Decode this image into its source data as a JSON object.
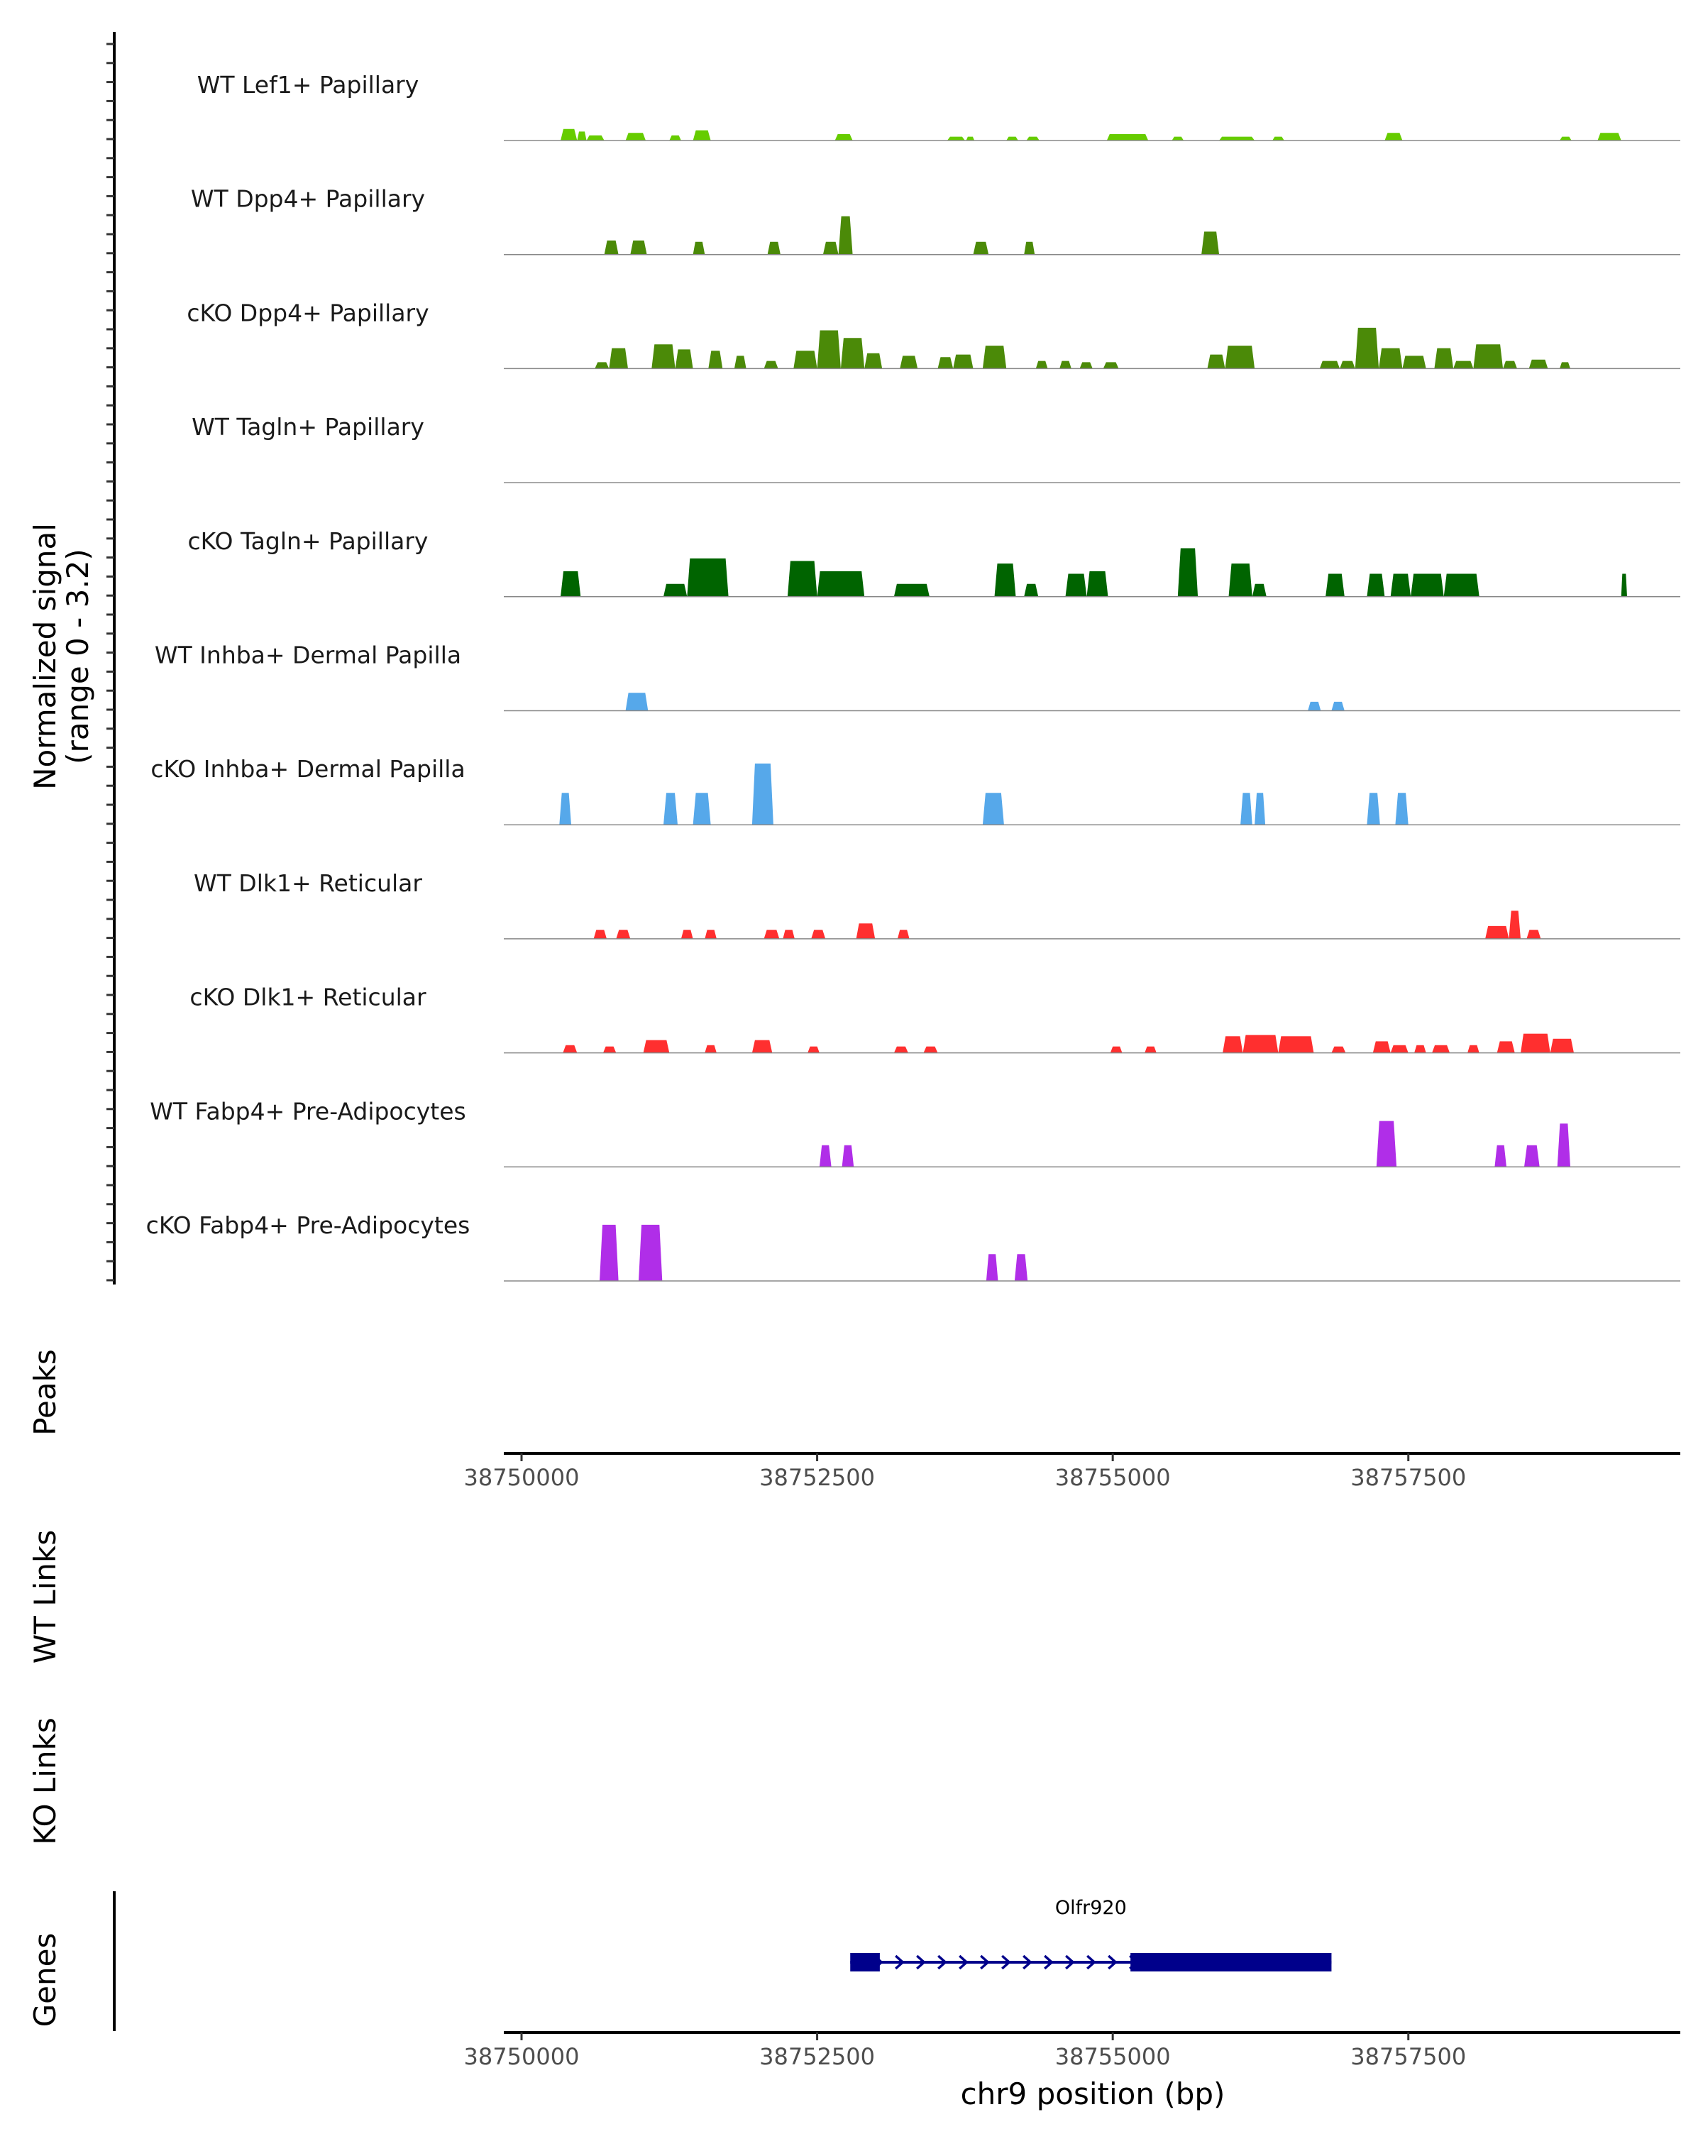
{
  "chart_data": {
    "type": "area",
    "title": "",
    "xlabel": "chr9 position (bp)",
    "ylabel": "Normalized signal\n(range 0 - 3.2)",
    "ylabel_lines": [
      "Normalized signal",
      "(range 0 - 3.2)"
    ],
    "ylim": [
      0,
      3.2
    ],
    "xlim": [
      38749850,
      38759800
    ],
    "x_ticks": [
      38750000,
      38752500,
      38755000,
      38757500
    ],
    "x_tick_labels": [
      "38750000",
      "38752500",
      "38755000",
      "38757500"
    ],
    "tracks": [
      {
        "name": "WT Lef1+ Papillary",
        "color": "#66cc00",
        "peaks": [
          [
            38750330,
            38750470,
            0.45
          ],
          [
            38750470,
            38750550,
            0.35
          ],
          [
            38750550,
            38750700,
            0.2
          ],
          [
            38750880,
            38751050,
            0.3
          ],
          [
            38751250,
            38751350,
            0.2
          ],
          [
            38751450,
            38751600,
            0.4
          ],
          [
            38752650,
            38752800,
            0.25
          ],
          [
            38753600,
            38753750,
            0.15
          ],
          [
            38753760,
            38753830,
            0.15
          ],
          [
            38754100,
            38754200,
            0.15
          ],
          [
            38754270,
            38754380,
            0.15
          ],
          [
            38754950,
            38755300,
            0.25
          ],
          [
            38755500,
            38755600,
            0.15
          ],
          [
            38755900,
            38756200,
            0.15
          ],
          [
            38756350,
            38756450,
            0.15
          ],
          [
            38757300,
            38757450,
            0.3
          ],
          [
            38758780,
            38758880,
            0.15
          ],
          [
            38759100,
            38759300,
            0.3
          ]
        ]
      },
      {
        "name": "WT Dpp4+ Papillary",
        "color": "#4b8a08",
        "peaks": [
          [
            38750700,
            38750820,
            0.55
          ],
          [
            38750920,
            38751060,
            0.55
          ],
          [
            38751450,
            38751550,
            0.5
          ],
          [
            38752080,
            38752190,
            0.5
          ],
          [
            38752550,
            38752680,
            0.5
          ],
          [
            38752680,
            38752800,
            1.5
          ],
          [
            38753820,
            38753950,
            0.5
          ],
          [
            38754250,
            38754340,
            0.5
          ],
          [
            38755750,
            38755900,
            0.9
          ]
        ]
      },
      {
        "name": "cKO Dpp4+ Papillary",
        "color": "#4b8a08",
        "peaks": [
          [
            38750620,
            38750740,
            0.25
          ],
          [
            38750740,
            38750900,
            0.8
          ],
          [
            38751100,
            38751300,
            0.95
          ],
          [
            38751300,
            38751450,
            0.75
          ],
          [
            38751580,
            38751700,
            0.7
          ],
          [
            38751800,
            38751900,
            0.5
          ],
          [
            38752050,
            38752170,
            0.3
          ],
          [
            38752300,
            38752500,
            0.7
          ],
          [
            38752500,
            38752700,
            1.5
          ],
          [
            38752700,
            38752900,
            1.2
          ],
          [
            38752900,
            38753050,
            0.6
          ],
          [
            38753200,
            38753350,
            0.5
          ],
          [
            38753520,
            38753650,
            0.45
          ],
          [
            38753650,
            38753820,
            0.55
          ],
          [
            38753900,
            38754100,
            0.9
          ],
          [
            38754350,
            38754450,
            0.3
          ],
          [
            38754550,
            38754650,
            0.3
          ],
          [
            38754720,
            38754830,
            0.25
          ],
          [
            38754920,
            38755050,
            0.25
          ],
          [
            38755800,
            38755950,
            0.55
          ],
          [
            38755950,
            38756200,
            0.9
          ],
          [
            38756750,
            38756920,
            0.3
          ],
          [
            38756920,
            38757050,
            0.3
          ],
          [
            38757050,
            38757250,
            1.6
          ],
          [
            38757250,
            38757450,
            0.8
          ],
          [
            38757450,
            38757650,
            0.5
          ],
          [
            38757720,
            38757880,
            0.8
          ],
          [
            38757880,
            38758050,
            0.3
          ],
          [
            38758050,
            38758300,
            0.95
          ],
          [
            38758300,
            38758420,
            0.3
          ],
          [
            38758520,
            38758680,
            0.35
          ],
          [
            38758780,
            38758870,
            0.25
          ]
        ]
      },
      {
        "name": "WT Tagln+ Papillary",
        "color": "#006400",
        "peaks": []
      },
      {
        "name": "cKO Tagln+ Papillary",
        "color": "#006400",
        "peaks": [
          [
            38750330,
            38750500,
            1.0
          ],
          [
            38751200,
            38751400,
            0.5
          ],
          [
            38751400,
            38751750,
            1.5
          ],
          [
            38752250,
            38752500,
            1.4
          ],
          [
            38752500,
            38752900,
            1.0
          ],
          [
            38753150,
            38753450,
            0.5
          ],
          [
            38754000,
            38754180,
            1.3
          ],
          [
            38754250,
            38754370,
            0.5
          ],
          [
            38754600,
            38754780,
            0.9
          ],
          [
            38754780,
            38754960,
            1.0
          ],
          [
            38755550,
            38755720,
            1.9
          ],
          [
            38755980,
            38756180,
            1.3
          ],
          [
            38756180,
            38756300,
            0.5
          ],
          [
            38756800,
            38756960,
            0.9
          ],
          [
            38757150,
            38757300,
            0.9
          ],
          [
            38757350,
            38757520,
            0.9
          ],
          [
            38757520,
            38757800,
            0.9
          ],
          [
            38757800,
            38758100,
            0.9
          ],
          [
            38759300,
            38759350,
            0.9
          ]
        ]
      },
      {
        "name": "WT Inhba+ Dermal Papilla",
        "color": "#56a8ea",
        "peaks": [
          [
            38750880,
            38751070,
            0.7
          ],
          [
            38756650,
            38756760,
            0.35
          ],
          [
            38756850,
            38756960,
            0.35
          ]
        ]
      },
      {
        "name": "cKO Inhba+ Dermal Papilla",
        "color": "#56a8ea",
        "peaks": [
          [
            38750320,
            38750420,
            1.25
          ],
          [
            38751200,
            38751320,
            1.25
          ],
          [
            38751450,
            38751600,
            1.25
          ],
          [
            38751950,
            38752130,
            2.4
          ],
          [
            38753900,
            38754080,
            1.25
          ],
          [
            38756080,
            38756180,
            1.25
          ],
          [
            38756200,
            38756290,
            1.25
          ],
          [
            38757150,
            38757260,
            1.25
          ],
          [
            38757390,
            38757500,
            1.25
          ]
        ]
      },
      {
        "name": "WT Dlk1+ Reticular",
        "color": "#ff2f2f",
        "peaks": [
          [
            38750610,
            38750720,
            0.35
          ],
          [
            38750800,
            38750920,
            0.35
          ],
          [
            38751350,
            38751450,
            0.35
          ],
          [
            38751550,
            38751650,
            0.35
          ],
          [
            38752050,
            38752180,
            0.35
          ],
          [
            38752210,
            38752310,
            0.35
          ],
          [
            38752450,
            38752570,
            0.35
          ],
          [
            38752830,
            38752990,
            0.6
          ],
          [
            38753180,
            38753280,
            0.35
          ],
          [
            38758150,
            38758350,
            0.5
          ],
          [
            38758350,
            38758450,
            1.1
          ],
          [
            38758500,
            38758620,
            0.35
          ]
        ]
      },
      {
        "name": "cKO Dlk1+ Reticular",
        "color": "#ff2f2f",
        "peaks": [
          [
            38750350,
            38750470,
            0.3
          ],
          [
            38750690,
            38750800,
            0.25
          ],
          [
            38751030,
            38751250,
            0.5
          ],
          [
            38751550,
            38751650,
            0.3
          ],
          [
            38751950,
            38752120,
            0.5
          ],
          [
            38752420,
            38752520,
            0.25
          ],
          [
            38753150,
            38753270,
            0.25
          ],
          [
            38753400,
            38753520,
            0.25
          ],
          [
            38754980,
            38755080,
            0.25
          ],
          [
            38755270,
            38755370,
            0.25
          ],
          [
            38755930,
            38756100,
            0.65
          ],
          [
            38756100,
            38756400,
            0.7
          ],
          [
            38756400,
            38756700,
            0.65
          ],
          [
            38756850,
            38756970,
            0.25
          ],
          [
            38757200,
            38757350,
            0.45
          ],
          [
            38757350,
            38757500,
            0.3
          ],
          [
            38757550,
            38757650,
            0.3
          ],
          [
            38757700,
            38757850,
            0.3
          ],
          [
            38758000,
            38758100,
            0.3
          ],
          [
            38758250,
            38758400,
            0.45
          ],
          [
            38758450,
            38758700,
            0.75
          ],
          [
            38758700,
            38758900,
            0.55
          ]
        ]
      },
      {
        "name": "WT Fabp4+ Pre-Adipocytes",
        "color": "#b02ee8",
        "peaks": [
          [
            38752520,
            38752620,
            0.85
          ],
          [
            38752710,
            38752810,
            0.85
          ],
          [
            38757230,
            38757400,
            1.8
          ],
          [
            38758230,
            38758330,
            0.85
          ],
          [
            38758480,
            38758610,
            0.85
          ],
          [
            38758760,
            38758870,
            1.7
          ]
        ]
      },
      {
        "name": "cKO Fabp4+ Pre-Adipocytes",
        "color": "#b02ee8",
        "peaks": [
          [
            38750660,
            38750820,
            2.2
          ],
          [
            38750990,
            38751190,
            2.2
          ],
          [
            38753930,
            38754030,
            1.05
          ],
          [
            38754170,
            38754280,
            1.05
          ]
        ]
      }
    ],
    "panels": {
      "peaks": "Peaks",
      "wt_links": "WT Links",
      "ko_links": "KO Links",
      "genes": "Genes"
    },
    "gene": {
      "name": "Olfr920",
      "color": "#00008b",
      "start": 38752780,
      "end": 38756850,
      "exons": [
        [
          38752780,
          38753030
        ],
        [
          38755150,
          38756850
        ]
      ],
      "strand": "+"
    }
  }
}
